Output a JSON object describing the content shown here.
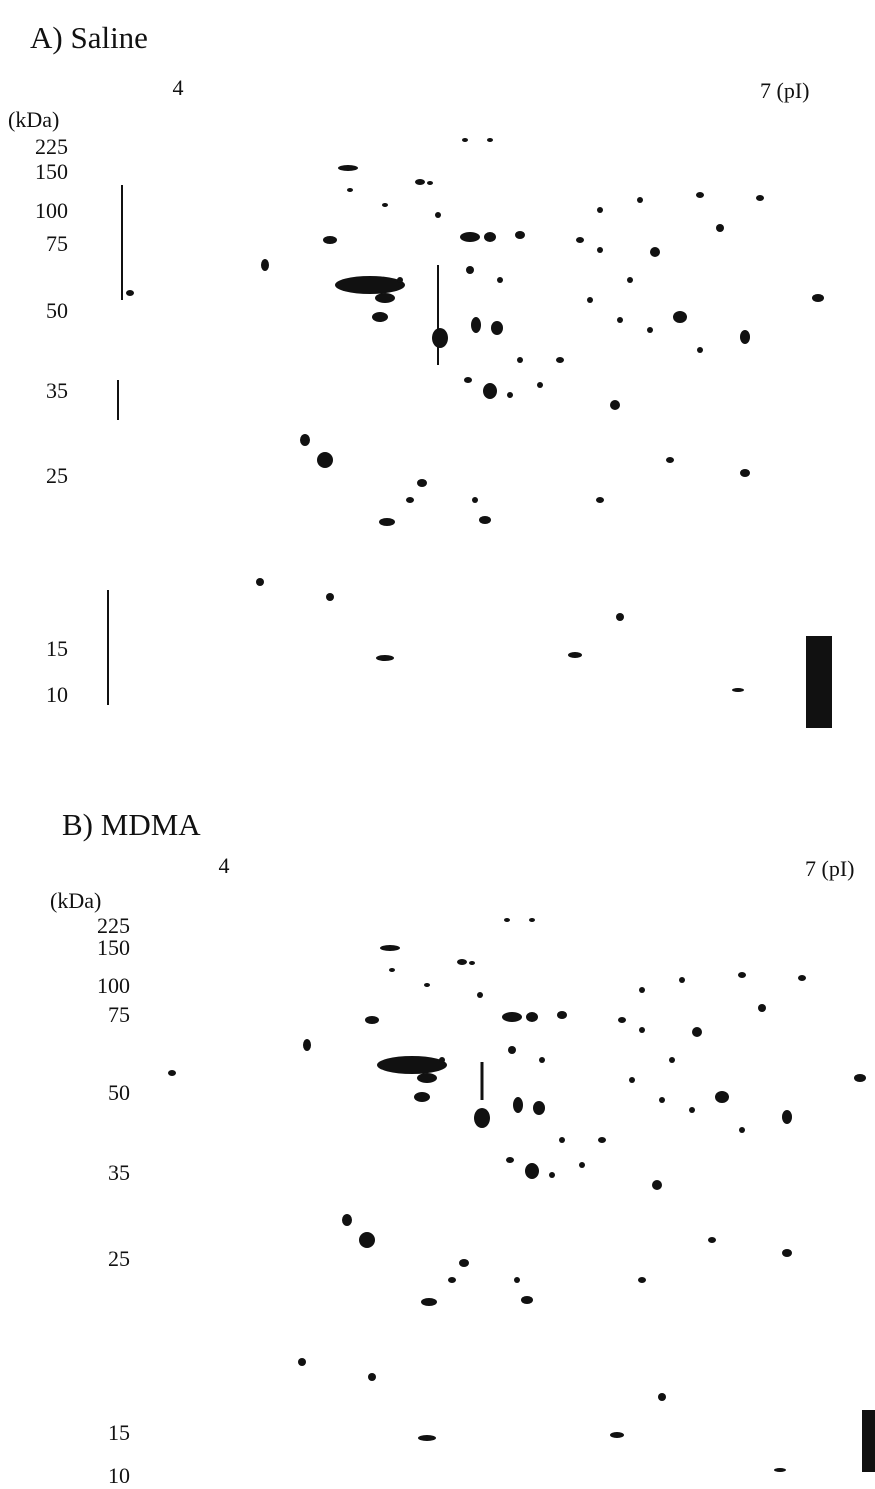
{
  "panels": [
    {
      "title": "A) Saline",
      "pi_labels": [
        "4",
        "7 (pI)"
      ],
      "mw_unit": "(kDa)",
      "mw_labels": [
        "225",
        "150",
        "100",
        "75",
        "50",
        "35",
        "25",
        "15",
        "10"
      ]
    },
    {
      "title": "B) MDMA",
      "pi_labels": [
        "4",
        "7 (pI)"
      ],
      "mw_unit": "(kDa)",
      "mw_labels": [
        "225",
        "150",
        "100",
        "75",
        "50",
        "35",
        "25",
        "15",
        "10"
      ]
    }
  ]
}
